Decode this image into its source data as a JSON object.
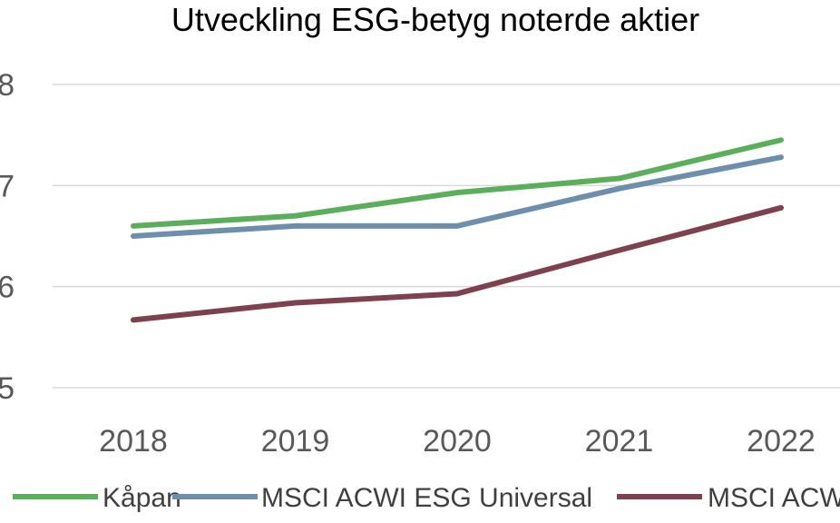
{
  "chart_data": {
    "type": "line",
    "title": "Utveckling ESG-betyg noterde aktier",
    "xlabel": "",
    "ylabel": "",
    "categories": [
      "2018",
      "2019",
      "2020",
      "2021",
      "2022"
    ],
    "ylim": [
      5,
      8
    ],
    "yticks": [
      "5",
      "6",
      "7",
      "8"
    ],
    "grid": true,
    "legend": "bottom",
    "series": [
      {
        "name": "Kåpan",
        "color": "#5BAF5C",
        "values": [
          6.6,
          6.7,
          6.93,
          7.07,
          7.45
        ]
      },
      {
        "name": "MSCI ACWI ESG Universal",
        "color": "#6E8FAC",
        "values": [
          6.5,
          6.6,
          6.6,
          6.97,
          7.28
        ]
      },
      {
        "name": "MSCI ACWI",
        "color": "#7E4150",
        "values": [
          5.67,
          5.84,
          5.93,
          6.36,
          6.78
        ]
      }
    ]
  }
}
